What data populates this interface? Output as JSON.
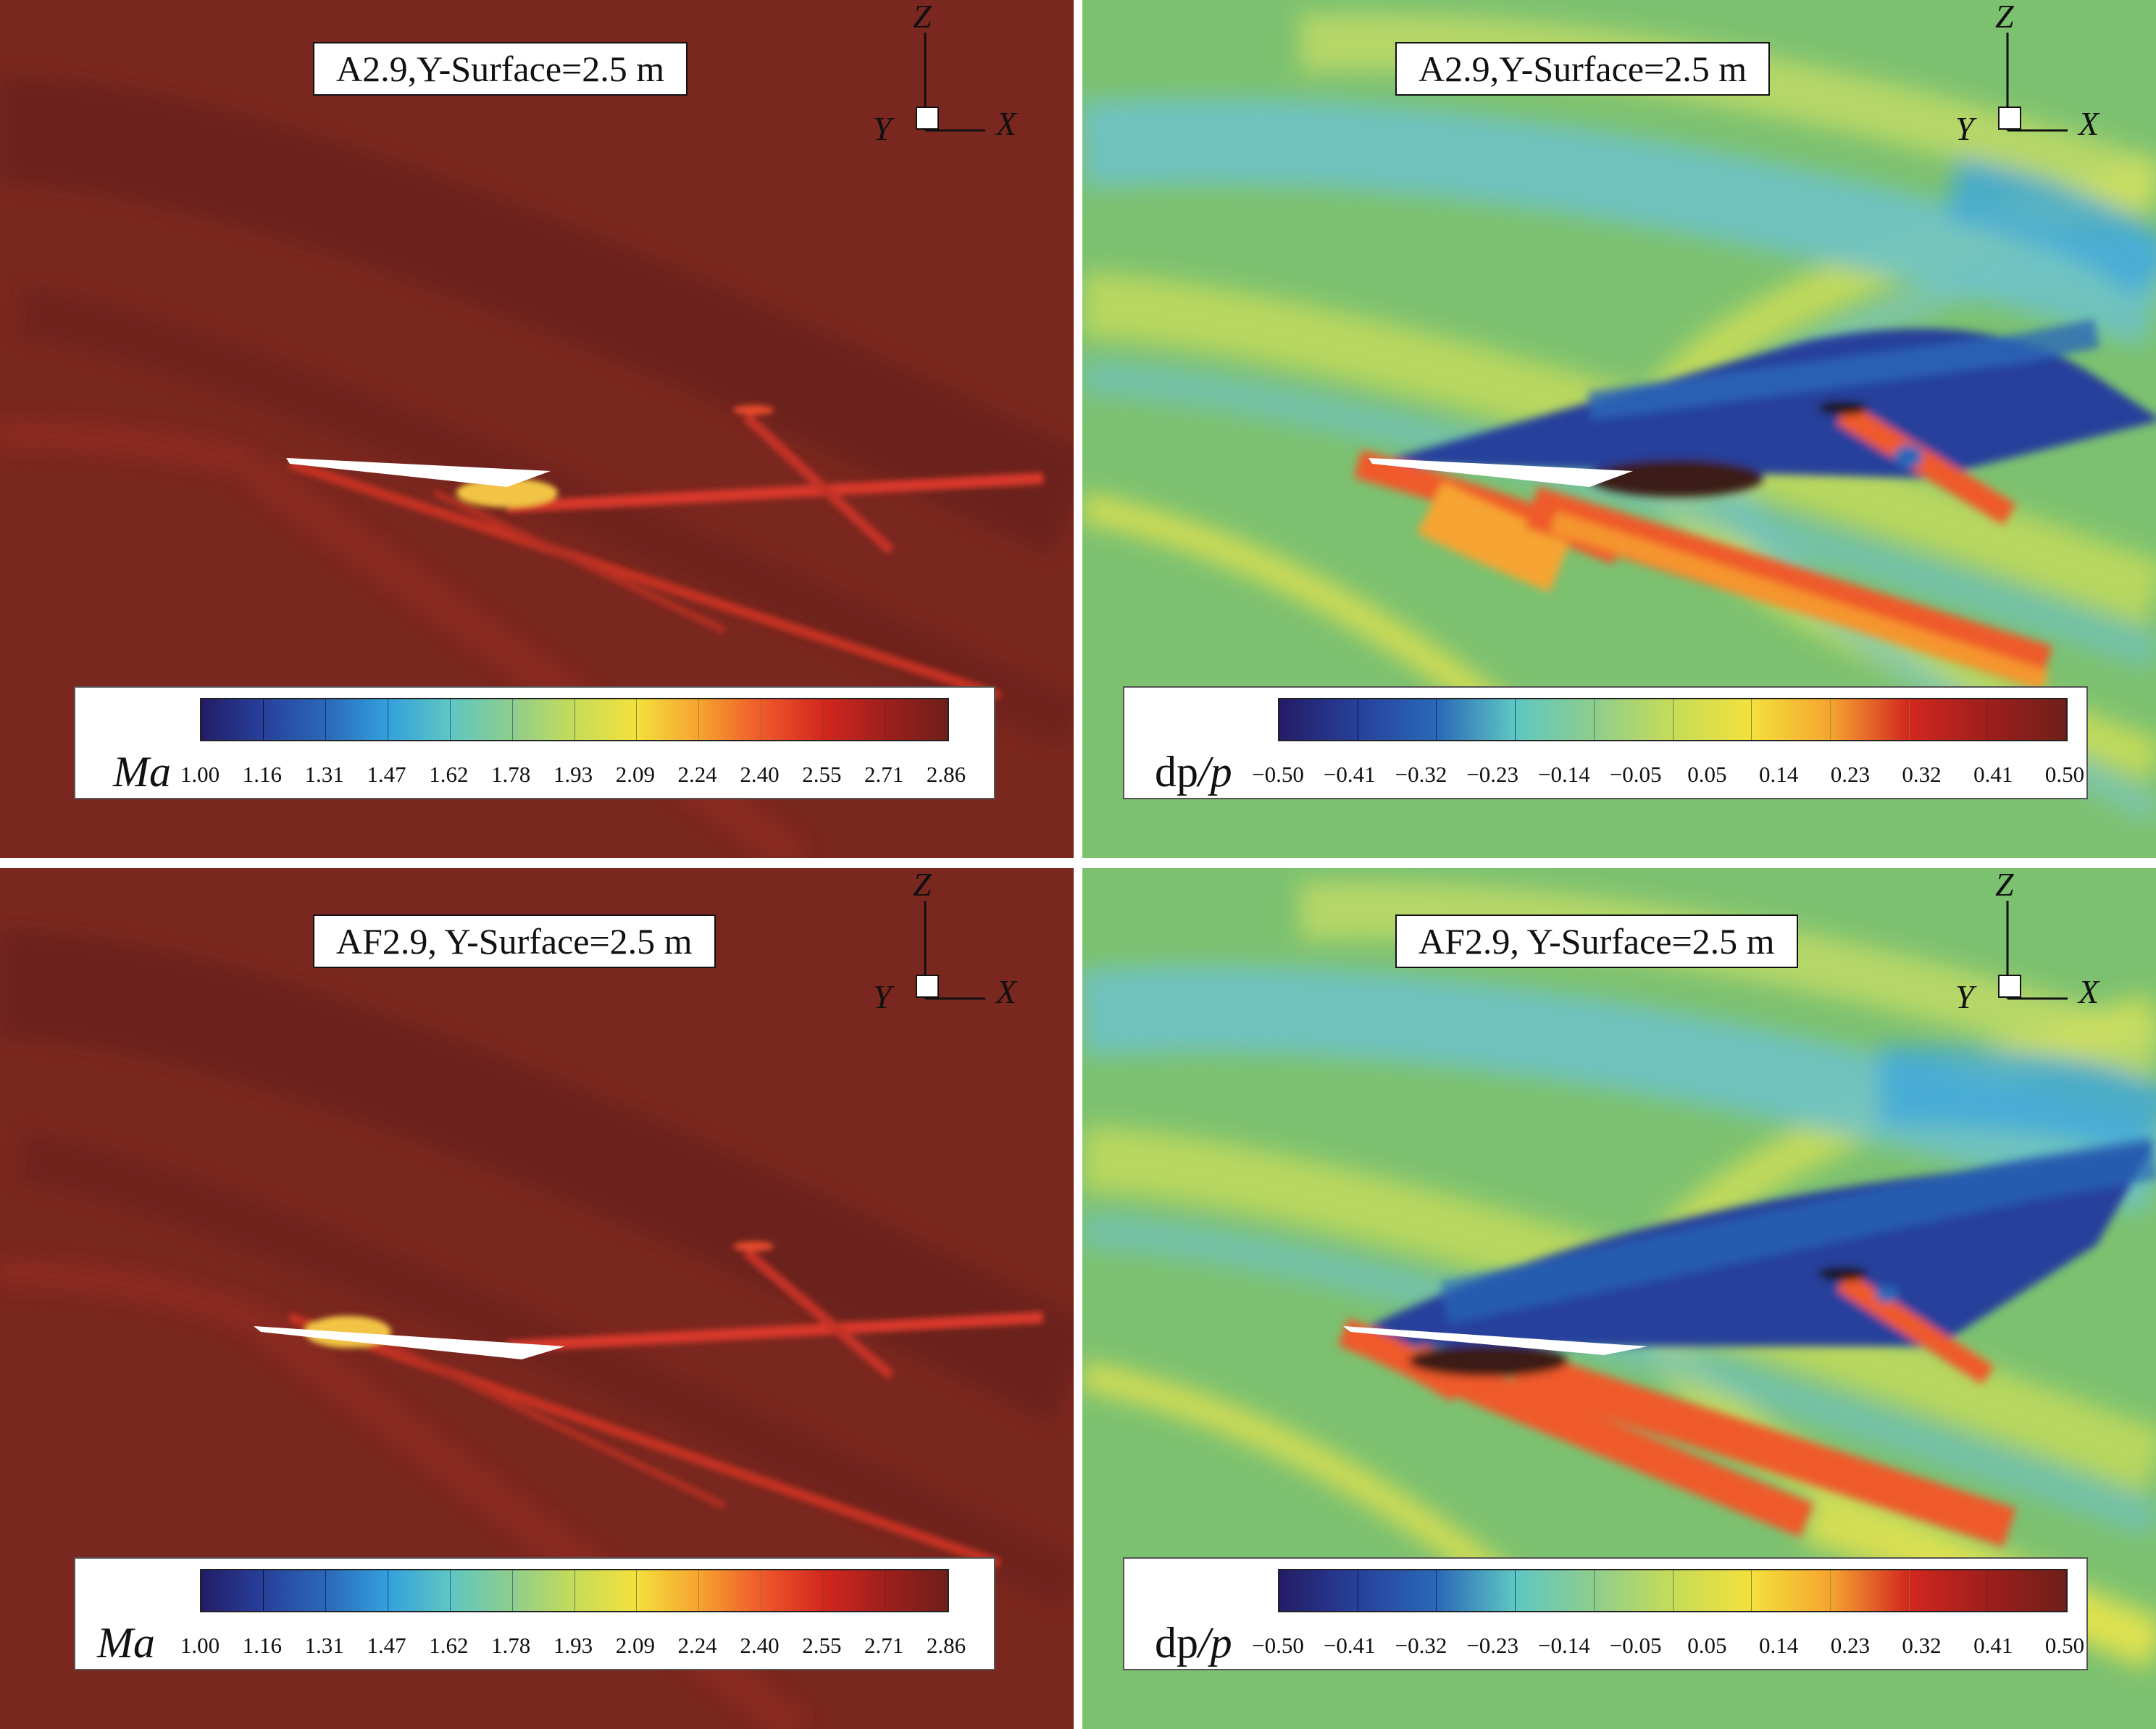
{
  "colors": {
    "mach_background": "#7a271f",
    "dpp_background": "#7cc170",
    "colormap": [
      "#231c66",
      "#27419b",
      "#2a68b8",
      "#33a0dd",
      "#5ec7c2",
      "#8fcd8c",
      "#c6dc58",
      "#f4e03c",
      "#f6a430",
      "#ef5a2a",
      "#d2271f",
      "#9e1f1c",
      "#6e1f1a"
    ]
  },
  "axes_triad": {
    "vertical": "Z",
    "depth": "Y",
    "horizontal": "X"
  },
  "panels": [
    {
      "title": "A2.9,Y-Surface=2.5 m",
      "field": "mach",
      "legend": {
        "label_main": "Ma",
        "label_tail": "",
        "ticks": [
          "1.00",
          "1.16",
          "1.31",
          "1.47",
          "1.62",
          "1.78",
          "1.93",
          "2.09",
          "2.24",
          "2.40",
          "2.55",
          "2.71",
          "2.86"
        ]
      }
    },
    {
      "title": "A2.9,Y-Surface=2.5 m",
      "field": "pressure",
      "legend": {
        "label_main": "dp",
        "label_tail": "/p",
        "ticks": [
          "−0.50",
          "−0.41",
          "−0.32",
          "−0.23",
          "−0.14",
          "−0.05",
          "0.05",
          "0.14",
          "0.23",
          "0.32",
          "0.41",
          "0.50"
        ]
      }
    },
    {
      "title": "AF2.9, Y-Surface=2.5 m",
      "field": "mach",
      "legend": {
        "label_main": "Ma",
        "label_tail": "",
        "ticks": [
          "1.00",
          "1.16",
          "1.31",
          "1.47",
          "1.62",
          "1.78",
          "1.93",
          "2.09",
          "2.24",
          "2.40",
          "2.55",
          "2.71",
          "2.86"
        ]
      }
    },
    {
      "title": "AF2.9, Y-Surface=2.5 m",
      "field": "pressure",
      "legend": {
        "label_main": "dp",
        "label_tail": "/p",
        "ticks": [
          "−0.50",
          "−0.41",
          "−0.32",
          "−0.23",
          "−0.14",
          "−0.05",
          "0.05",
          "0.14",
          "0.23",
          "0.32",
          "0.41",
          "0.50"
        ]
      }
    }
  ]
}
